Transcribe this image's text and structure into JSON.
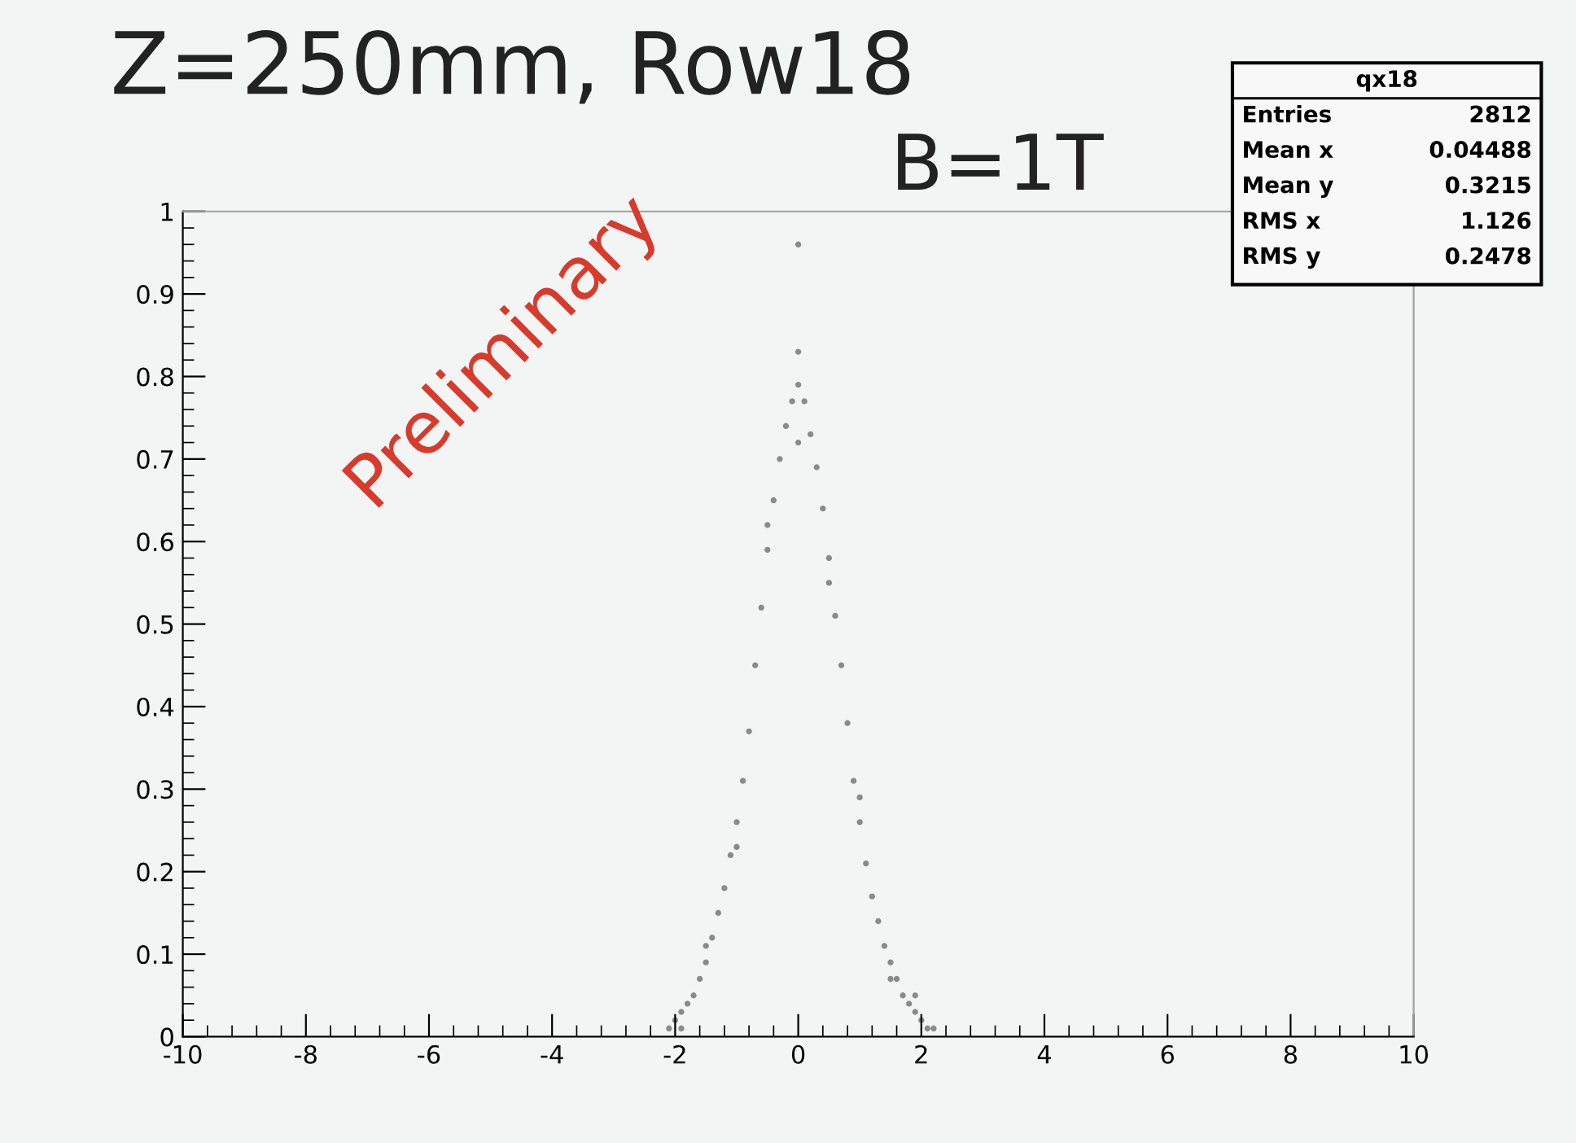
{
  "chart_data": {
    "type": "scatter",
    "title": "Z=250mm, Row18",
    "annotations": [
      "B=1T",
      "Preliminary",
      "qx18",
      "Entries",
      "2812",
      "Mean x",
      "0.04488",
      "Mean y",
      "0.3215",
      "RMS x",
      "1.126",
      "RMS y",
      "0.2478"
    ],
    "xlim": [
      -10,
      10
    ],
    "xticks": [
      -10,
      -8,
      -6,
      -4,
      -2,
      0,
      2,
      4,
      6,
      8,
      10
    ],
    "ylim": [
      0,
      1
    ],
    "yticks": [
      0,
      0.1,
      0.2,
      0.3,
      0.4,
      0.5,
      0.6,
      0.7,
      0.8,
      0.9,
      1
    ],
    "grid": false,
    "marker": "circle",
    "series": [
      {
        "color": "#8a8a8a",
        "x": [
          -2.1,
          -2.0,
          -1.9,
          -1.8,
          -1.7,
          -1.6,
          -1.5,
          -1.4,
          -1.3,
          -1.2,
          -1.1,
          -1.0,
          -0.9,
          -0.8,
          -0.7,
          -0.6,
          -0.5,
          -0.4,
          -0.3,
          -0.2,
          -0.1,
          0.0,
          -1.5,
          -1.0,
          -0.5,
          0.0,
          0.0,
          0.0,
          0.1,
          0.2,
          0.3,
          0.4,
          0.5,
          0.6,
          0.7,
          0.8,
          0.9,
          1.0,
          1.1,
          1.2,
          1.3,
          1.4,
          1.5,
          1.6,
          1.7,
          1.8,
          1.9,
          2.0,
          2.1,
          2.2,
          0.5,
          1.0,
          1.5,
          -1.9,
          1.9
        ],
        "values": [
          0.01,
          0.02,
          0.03,
          0.04,
          0.05,
          0.07,
          0.09,
          0.12,
          0.15,
          0.18,
          0.22,
          0.26,
          0.31,
          0.37,
          0.45,
          0.52,
          0.59,
          0.65,
          0.7,
          0.74,
          0.77,
          0.79,
          0.11,
          0.23,
          0.62,
          0.72,
          0.83,
          0.96,
          0.77,
          0.73,
          0.69,
          0.64,
          0.58,
          0.51,
          0.45,
          0.38,
          0.31,
          0.26,
          0.21,
          0.17,
          0.14,
          0.11,
          0.09,
          0.07,
          0.05,
          0.04,
          0.03,
          0.02,
          0.01,
          0.01,
          0.55,
          0.29,
          0.07,
          0.01,
          0.05
        ]
      }
    ]
  }
}
